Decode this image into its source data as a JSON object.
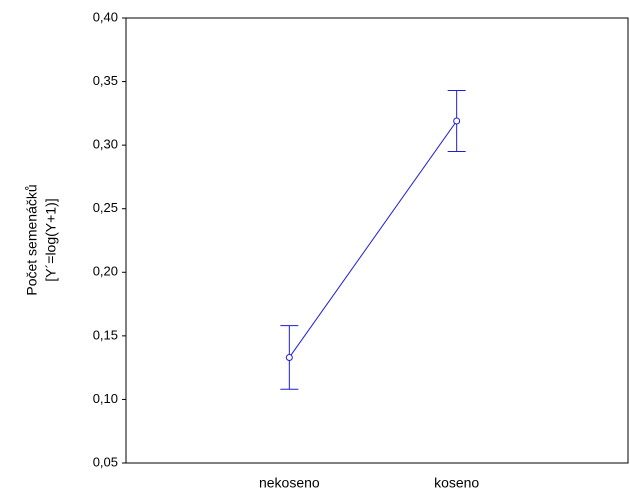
{
  "chart_data": {
    "type": "line",
    "ylabel": [
      "Počet semenáčků",
      "[Y´=log(Y+1)]"
    ],
    "categories": [
      "nekoseno",
      "koseno"
    ],
    "series": [
      {
        "color": "#1f1fd6",
        "values": [
          0.133,
          0.319
        ],
        "errors": [
          0.025,
          0.024
        ]
      }
    ],
    "ylim": [
      0.05,
      0.4
    ],
    "yticks": [
      {
        "value": 0.05,
        "label": "0,05"
      },
      {
        "value": 0.1,
        "label": "0,10"
      },
      {
        "value": 0.15,
        "label": "0,15"
      },
      {
        "value": 0.2,
        "label": "0,20"
      },
      {
        "value": 0.25,
        "label": "0,25"
      },
      {
        "value": 0.3,
        "label": "0,30"
      },
      {
        "value": 0.35,
        "label": "0,35"
      },
      {
        "value": 0.4,
        "label": "0,40"
      }
    ]
  }
}
